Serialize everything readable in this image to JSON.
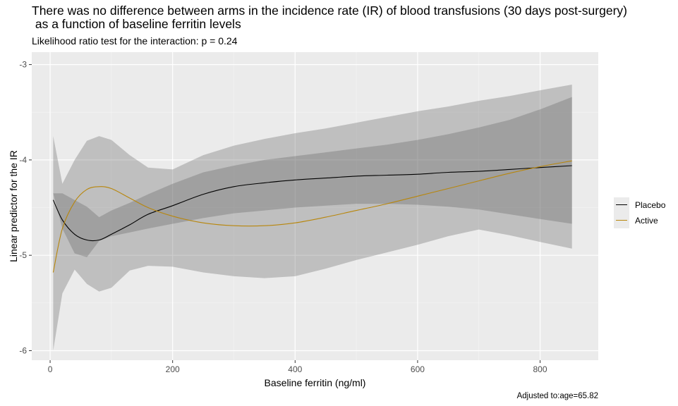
{
  "chart_data": {
    "type": "line",
    "title": "There was no difference between arms in the incidence rate (IR) of blood transfusions (30 days post-surgery)\n as a function of baseline ferritin levels",
    "subtitle": "Likelihood ratio test for the interaction: p = 0.24",
    "xlabel": "Baseline ferritin (ng/ml)",
    "ylabel": "Linear predictor for the IR",
    "caption": "Adjusted to:age=65.82",
    "xlim": [
      -30,
      895
    ],
    "ylim": [
      -6.1,
      -2.87
    ],
    "x_ticks": [
      0,
      200,
      400,
      600,
      800
    ],
    "y_ticks": [
      -3,
      -4,
      -5,
      -6
    ],
    "grid": true,
    "legend_position": "right",
    "x": [
      5,
      20,
      40,
      60,
      80,
      100,
      130,
      160,
      200,
      250,
      300,
      350,
      400,
      450,
      500,
      550,
      600,
      650,
      700,
      750,
      800,
      852
    ],
    "series": [
      {
        "name": "Placebo",
        "color": "#000000",
        "values": [
          -4.42,
          -4.63,
          -4.78,
          -4.84,
          -4.84,
          -4.78,
          -4.68,
          -4.57,
          -4.48,
          -4.36,
          -4.28,
          -4.24,
          -4.21,
          -4.19,
          -4.17,
          -4.16,
          -4.15,
          -4.13,
          -4.12,
          -4.1,
          -4.08,
          -4.06
        ],
        "lower": [
          -4.35,
          -4.72,
          -4.98,
          -5.02,
          -4.85,
          -4.8,
          -4.76,
          -4.72,
          -4.67,
          -4.61,
          -4.56,
          -4.53,
          -4.5,
          -4.48,
          -4.46,
          -4.46,
          -4.47,
          -4.49,
          -4.52,
          -4.57,
          -4.62,
          -4.67
        ],
        "upper": [
          -4.35,
          -4.35,
          -4.42,
          -4.49,
          -4.6,
          -4.53,
          -4.45,
          -4.36,
          -4.25,
          -4.13,
          -4.06,
          -4.0,
          -3.96,
          -3.92,
          -3.88,
          -3.84,
          -3.79,
          -3.73,
          -3.66,
          -3.58,
          -3.47,
          -3.34
        ]
      },
      {
        "name": "Active",
        "color": "#b8860b",
        "values": [
          -5.18,
          -4.72,
          -4.44,
          -4.31,
          -4.28,
          -4.3,
          -4.4,
          -4.5,
          -4.59,
          -4.66,
          -4.69,
          -4.69,
          -4.66,
          -4.6,
          -4.53,
          -4.46,
          -4.38,
          -4.3,
          -4.22,
          -4.14,
          -4.07,
          -4.01
        ],
        "lower": [
          -6.0,
          -5.4,
          -5.15,
          -5.3,
          -5.38,
          -5.34,
          -5.16,
          -5.11,
          -5.12,
          -5.18,
          -5.22,
          -5.24,
          -5.22,
          -5.14,
          -5.05,
          -4.97,
          -4.89,
          -4.8,
          -4.73,
          -4.79,
          -4.86,
          -4.93
        ],
        "upper": [
          -3.75,
          -4.25,
          -4.0,
          -3.8,
          -3.75,
          -3.79,
          -3.95,
          -4.08,
          -4.1,
          -3.95,
          -3.85,
          -3.78,
          -3.72,
          -3.67,
          -3.61,
          -3.55,
          -3.49,
          -3.44,
          -3.38,
          -3.33,
          -3.27,
          -3.21
        ]
      }
    ]
  }
}
